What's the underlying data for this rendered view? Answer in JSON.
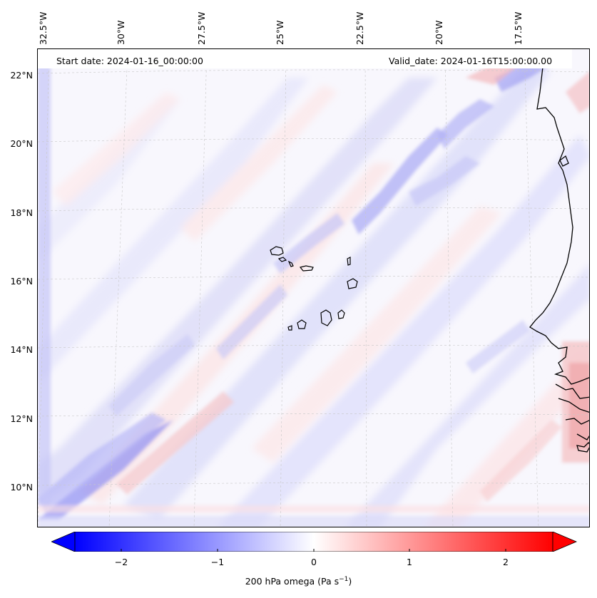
{
  "map": {
    "start_date": "Start date: 2024-01-16_00:00:00",
    "valid_date": "Valid_date: 2024-01-16T15:00:00.00",
    "longitude_labels": [
      "32.5°W",
      "30°W",
      "27.5°W",
      "25°W",
      "22.5°W",
      "20°W",
      "17.5°W"
    ],
    "latitude_labels": [
      "22°N",
      "20°N",
      "18°N",
      "16°N",
      "14°N",
      "12°N",
      "10°N"
    ],
    "field": "200 hPa omega",
    "extent": {
      "lon_min": -33.0,
      "lon_max": -16.0,
      "lat_min": 8.8,
      "lat_max": 22.8
    },
    "gridlines": true,
    "coastlines": true
  },
  "colorbar": {
    "label_main": "200 hPa omega (Pa s",
    "label_exp": "−1",
    "label_close": ")",
    "ticks": [
      "−2",
      "−1",
      "0",
      "1",
      "2"
    ],
    "tick_values": [
      -2,
      -1,
      0,
      1,
      2
    ],
    "vmin": -2.5,
    "vmax": 2.5,
    "extend": "both",
    "cmap": "bwr",
    "negative_color": "#0000ff",
    "zero_color": "#ffffff",
    "positive_color": "#ff0000"
  }
}
